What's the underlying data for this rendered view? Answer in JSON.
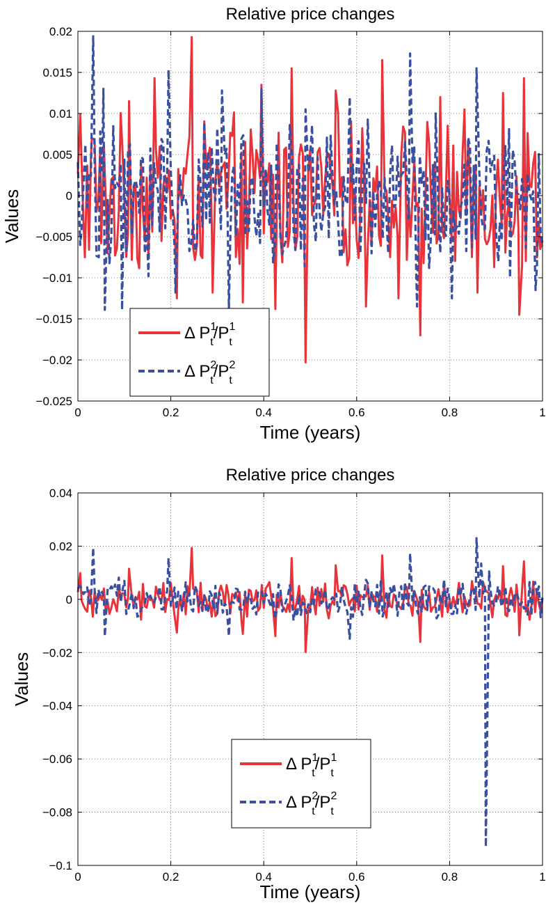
{
  "chart_data": [
    {
      "type": "line",
      "title": "Relative price changes",
      "xlabel": "Time (years)",
      "ylabel": "Values",
      "xlim": [
        0,
        1
      ],
      "ylim": [
        -0.025,
        0.02
      ],
      "x_ticks": [
        "0",
        "0.2",
        "0.4",
        "0.6",
        "0.8",
        "1"
      ],
      "y_ticks": [
        "0.02",
        "0.015",
        "0.01",
        "0.005",
        "0",
        "−0.005",
        "−0.01",
        "−0.015",
        "−0.02",
        "−0.025"
      ],
      "grid": true,
      "legend_position": "lower-left",
      "series": [
        {
          "name": "Δ P_t^1/P_t^1",
          "color": "#e8333a",
          "style": "solid",
          "spikes": [
            {
              "x": 0.005,
              "y": 0.0099
            },
            {
              "x": 0.015,
              "y": -0.0075
            },
            {
              "x": 0.03,
              "y": 0.007
            },
            {
              "x": 0.05,
              "y": -0.0058
            },
            {
              "x": 0.11,
              "y": 0.0115
            },
            {
              "x": 0.165,
              "y": 0.0143
            },
            {
              "x": 0.213,
              "y": -0.0125
            },
            {
              "x": 0.245,
              "y": 0.0193
            },
            {
              "x": 0.29,
              "y": -0.0118
            },
            {
              "x": 0.355,
              "y": -0.013
            },
            {
              "x": 0.395,
              "y": 0.0135
            },
            {
              "x": 0.425,
              "y": -0.0138
            },
            {
              "x": 0.46,
              "y": 0.0155
            },
            {
              "x": 0.49,
              "y": -0.0203
            },
            {
              "x": 0.555,
              "y": 0.0128
            },
            {
              "x": 0.62,
              "y": -0.0135
            },
            {
              "x": 0.655,
              "y": 0.0165
            },
            {
              "x": 0.69,
              "y": -0.0125
            },
            {
              "x": 0.737,
              "y": -0.017
            },
            {
              "x": 0.78,
              "y": 0.012
            },
            {
              "x": 0.86,
              "y": -0.0118
            },
            {
              "x": 0.915,
              "y": 0.0125
            },
            {
              "x": 0.95,
              "y": -0.0145
            },
            {
              "x": 0.96,
              "y": 0.0143
            },
            {
              "x": 0.995,
              "y": -0.0065
            }
          ]
        },
        {
          "name": "Δ P_t^2/P_t^2",
          "color": "#3a4fa0",
          "style": "dashed",
          "spikes": [
            {
              "x": 0.005,
              "y": -0.006
            },
            {
              "x": 0.033,
              "y": 0.0194
            },
            {
              "x": 0.045,
              "y": -0.0075
            },
            {
              "x": 0.055,
              "y": 0.013
            },
            {
              "x": 0.058,
              "y": -0.0139
            },
            {
              "x": 0.095,
              "y": -0.0139
            },
            {
              "x": 0.152,
              "y": -0.0098
            },
            {
              "x": 0.195,
              "y": 0.0153
            },
            {
              "x": 0.21,
              "y": -0.0118
            },
            {
              "x": 0.31,
              "y": 0.0128
            },
            {
              "x": 0.325,
              "y": -0.0138
            },
            {
              "x": 0.395,
              "y": 0.013
            },
            {
              "x": 0.49,
              "y": 0.0105
            },
            {
              "x": 0.585,
              "y": -0.0148
            },
            {
              "x": 0.585,
              "y": 0.012
            },
            {
              "x": 0.715,
              "y": 0.0173
            },
            {
              "x": 0.73,
              "y": -0.0135
            },
            {
              "x": 0.77,
              "y": 0.01
            },
            {
              "x": 0.805,
              "y": -0.0125
            },
            {
              "x": 0.858,
              "y": 0.0155
            },
            {
              "x": 0.905,
              "y": -0.008
            },
            {
              "x": 0.93,
              "y": -0.01
            },
            {
              "x": 0.985,
              "y": -0.0115
            }
          ]
        }
      ]
    },
    {
      "type": "line",
      "title": "Relative price changes",
      "xlabel": "Time (years)",
      "ylabel": "Values",
      "xlim": [
        0,
        1
      ],
      "ylim": [
        -0.1,
        0.04
      ],
      "x_ticks": [
        "0",
        "0.2",
        "0.4",
        "0.6",
        "0.8",
        "1"
      ],
      "y_ticks": [
        "0.04",
        "0.02",
        "0",
        "−0.02",
        "−0.04",
        "−0.06",
        "−0.08",
        "−0.1"
      ],
      "grid": true,
      "legend_position": "lower-center",
      "series": [
        {
          "name": "Δ P_t^1/P_t^1",
          "color": "#e8333a",
          "style": "solid",
          "spikes": [
            {
              "x": 0.005,
              "y": 0.0099
            },
            {
              "x": 0.11,
              "y": 0.0115
            },
            {
              "x": 0.213,
              "y": -0.0125
            },
            {
              "x": 0.245,
              "y": 0.0193
            },
            {
              "x": 0.355,
              "y": -0.013
            },
            {
              "x": 0.425,
              "y": -0.0138
            },
            {
              "x": 0.46,
              "y": 0.0155
            },
            {
              "x": 0.49,
              "y": -0.0198
            },
            {
              "x": 0.555,
              "y": 0.0128
            },
            {
              "x": 0.655,
              "y": 0.0165
            },
            {
              "x": 0.737,
              "y": -0.016
            },
            {
              "x": 0.915,
              "y": 0.0125
            },
            {
              "x": 0.95,
              "y": -0.0135
            },
            {
              "x": 0.96,
              "y": 0.0143
            }
          ]
        },
        {
          "name": "Δ P_t^2/P_t^2",
          "color": "#3a4fa0",
          "style": "dashed",
          "spikes": [
            {
              "x": 0.033,
              "y": 0.0194
            },
            {
              "x": 0.058,
              "y": -0.0139
            },
            {
              "x": 0.195,
              "y": 0.0155
            },
            {
              "x": 0.325,
              "y": -0.0138
            },
            {
              "x": 0.585,
              "y": -0.0148
            },
            {
              "x": 0.715,
              "y": 0.0173
            },
            {
              "x": 0.858,
              "y": 0.023
            },
            {
              "x": 0.868,
              "y": 0.0135
            },
            {
              "x": 0.878,
              "y": -0.093
            },
            {
              "x": 0.885,
              "y": 0.0105
            }
          ]
        }
      ]
    }
  ]
}
